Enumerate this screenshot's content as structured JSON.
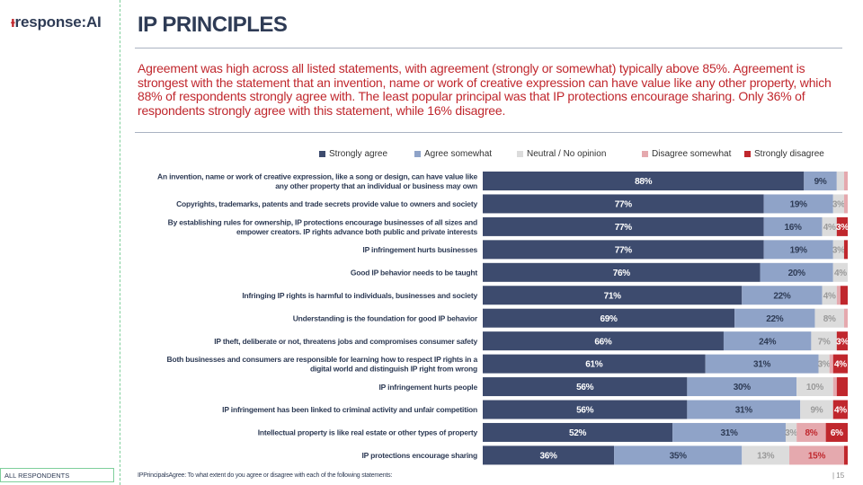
{
  "logo": {
    "mark": "ᵻ",
    "text": "response:AI"
  },
  "title": "IP PRINCIPLES",
  "summary": "Agreement was high across all listed statements, with agreement (strongly or somewhat) typically above 85%. Agreement is strongest with the statement that an invention, name or work of creative expression can have value like any other property, which 88% of respondents strongly agree with.  The least popular principal was that IP protections encourage sharing. Only 36% of respondents strongly agree with this statement, while 16% disagree.",
  "footer": {
    "base": "ALL RESPONDENTS",
    "source": "IPPrincipalsAgree: To what extent do you agree or disagree with each of the following statements:",
    "page": "| 15"
  },
  "colors": {
    "strongly_agree": "#3d4b6e",
    "agree_somewhat": "#8fa3c8",
    "neutral": "#dcdcdc",
    "disagree_somewhat": "#e5a9ae",
    "strongly_disagree": "#c0272d"
  },
  "chart_data": {
    "type": "bar",
    "orientation": "horizontal-stacked-100",
    "legend_position": "top",
    "series": [
      {
        "name": "Strongly agree",
        "values": [
          88,
          77,
          77,
          77,
          76,
          71,
          69,
          66,
          61,
          56,
          56,
          52,
          36
        ]
      },
      {
        "name": "Agree somewhat",
        "values": [
          9,
          19,
          16,
          19,
          20,
          22,
          22,
          24,
          31,
          30,
          31,
          31,
          35
        ]
      },
      {
        "name": "Neutral / No opinion",
        "values": [
          2,
          3,
          4,
          3,
          4,
          4,
          8,
          7,
          3,
          10,
          9,
          3,
          13
        ]
      },
      {
        "name": "Disagree somewhat",
        "values": [
          1,
          1,
          0,
          0,
          0,
          1,
          1,
          0,
          1,
          1,
          0,
          8,
          15
        ]
      },
      {
        "name": "Strongly disagree",
        "values": [
          0,
          0,
          3,
          1,
          0,
          2,
          0,
          3,
          4,
          3,
          4,
          6,
          1
        ]
      }
    ],
    "labels": [
      [
        "88%",
        "9%",
        "",
        "",
        ""
      ],
      [
        "77%",
        "19%",
        "3%",
        "",
        ""
      ],
      [
        "77%",
        "16%",
        "4%",
        "",
        "3%"
      ],
      [
        "77%",
        "19%",
        "3%",
        "",
        ""
      ],
      [
        "76%",
        "20%",
        "4%",
        "",
        ""
      ],
      [
        "71%",
        "22%",
        "4%",
        "",
        ""
      ],
      [
        "69%",
        "22%",
        "8%",
        "",
        ""
      ],
      [
        "66%",
        "24%",
        "7%",
        "",
        "3%"
      ],
      [
        "61%",
        "31%",
        "3%",
        "",
        "4%"
      ],
      [
        "56%",
        "30%",
        "10%",
        "",
        ""
      ],
      [
        "56%",
        "31%",
        "9%",
        "",
        "4%"
      ],
      [
        "52%",
        "31%",
        "3%",
        "8%",
        "6%"
      ],
      [
        "36%",
        "35%",
        "13%",
        "15%",
        ""
      ]
    ],
    "categories": [
      [
        "An invention, name or work of creative expression, like a song or design, can have value like",
        "any other property that an individual or business may own"
      ],
      [
        "Copyrights, trademarks, patents and trade secrets provide value to owners and society"
      ],
      [
        "By establishing rules for ownership, IP protections encourage businesses of all sizes and",
        "empower creators. IP rights advance both public and private interests"
      ],
      [
        "IP infringement hurts businesses"
      ],
      [
        "Good IP behavior needs to be taught"
      ],
      [
        "Infringing IP rights is harmful to individuals, businesses and society"
      ],
      [
        "Understanding is the foundation for good IP behavior"
      ],
      [
        "IP theft, deliberate or not, threatens jobs and compromises consumer safety"
      ],
      [
        "Both businesses and consumers are responsible for learning how to respect IP rights in a",
        "digital world and distinguish IP right from wrong"
      ],
      [
        "IP infringement hurts people"
      ],
      [
        "IP infringement has been linked to criminal activity and unfair competition"
      ],
      [
        "Intellectual property is like real estate or other types of property"
      ],
      [
        "IP protections encourage sharing"
      ]
    ]
  }
}
